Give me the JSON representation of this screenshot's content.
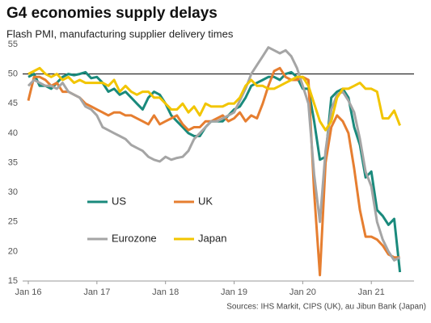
{
  "chart_data": {
    "type": "line",
    "title": "G4 economies supply delays",
    "subtitle": "Flash PMI, manufacturing supplier delivery times",
    "source": "Sources: IHS Markit, CIPS (UK), au Jibun Bank (Japan)",
    "categories": [
      "Jan 16",
      null,
      null,
      null,
      null,
      null,
      null,
      null,
      null,
      null,
      null,
      null,
      "Jan 17",
      null,
      null,
      null,
      null,
      null,
      null,
      null,
      null,
      null,
      null,
      null,
      "Jan 18",
      null,
      null,
      null,
      null,
      null,
      null,
      null,
      null,
      null,
      null,
      null,
      "Jan 19",
      null,
      null,
      null,
      null,
      null,
      null,
      null,
      null,
      null,
      null,
      null,
      "Jan 20",
      null,
      null,
      null,
      null,
      null,
      null,
      null,
      null,
      null,
      null,
      null,
      "Jan 21",
      null,
      null,
      null,
      null,
      null
    ],
    "ylim": [
      15,
      55
    ],
    "yticks": [
      15,
      20,
      25,
      30,
      35,
      40,
      45,
      50,
      55
    ],
    "hline": 50,
    "series": [
      {
        "name": "US",
        "color": "#1a8a7c",
        "values": [
          49.5,
          50,
          48,
          48,
          47.5,
          48.5,
          49.5,
          50,
          49.8,
          50,
          50.3,
          49.3,
          49.5,
          48.5,
          47,
          47.5,
          46.5,
          47,
          46,
          45,
          44,
          46,
          47,
          46.5,
          45,
          43,
          42,
          41,
          40,
          39.5,
          39.5,
          41,
          42,
          42,
          42,
          43,
          44,
          44.5,
          46,
          48,
          48.5,
          49,
          49.5,
          49.5,
          49,
          50,
          50.3,
          49.5,
          47.5,
          47.5,
          42,
          35.5,
          36,
          46,
          47,
          47.5,
          46,
          41,
          38,
          32.5,
          33.5,
          27,
          26,
          24.5,
          25.5,
          16.5
        ]
      },
      {
        "name": "UK",
        "color": "#e67e30",
        "values": [
          45.5,
          49.5,
          49.5,
          49,
          48,
          48.5,
          47,
          47,
          46.5,
          46,
          45,
          44.5,
          44,
          43.5,
          43,
          43.5,
          43.5,
          43,
          43,
          42.5,
          42,
          41.5,
          43,
          41.5,
          42,
          42.5,
          43,
          41.5,
          40.5,
          41,
          41,
          42,
          42,
          42.5,
          43,
          42,
          42.5,
          43.5,
          42,
          43,
          42.5,
          45,
          48,
          50.5,
          51,
          49.5,
          49,
          49,
          49.5,
          49,
          30,
          16,
          35,
          41,
          43,
          42,
          40,
          34,
          27,
          22.5,
          22.5,
          22,
          21,
          19.5,
          19,
          19
        ]
      },
      {
        "name": "Eurozone",
        "color": "#a5a5a5",
        "values": [
          48,
          49,
          48.5,
          48,
          48,
          47.5,
          48.5,
          47,
          46.5,
          46,
          44.5,
          44,
          43,
          41,
          40.5,
          40,
          39.5,
          39,
          38,
          37.5,
          37,
          36,
          35.5,
          35.2,
          36,
          35.5,
          35.8,
          36,
          37,
          39,
          40,
          41,
          42,
          42,
          42.5,
          43,
          43.5,
          45.5,
          47.5,
          50,
          51.5,
          53,
          54.5,
          54,
          53.5,
          54,
          53,
          51,
          48,
          45,
          33,
          25,
          37,
          44,
          46.5,
          47,
          45.5,
          43.5,
          39,
          33.5,
          31,
          25,
          22,
          20,
          18.5,
          19
        ]
      },
      {
        "name": "Japan",
        "color": "#f2c500",
        "values": [
          50,
          50.5,
          51,
          50,
          49.5,
          50,
          49,
          49.5,
          48.5,
          49,
          48.5,
          48.5,
          48.5,
          48.5,
          48,
          49,
          47,
          48,
          47,
          46.5,
          47,
          47,
          46,
          46,
          45,
          44,
          44,
          45,
          43.5,
          44.5,
          43,
          45,
          44.5,
          44.5,
          44.5,
          45,
          45,
          46,
          48,
          49,
          48,
          48,
          47.5,
          47.5,
          48,
          48.5,
          49,
          49.5,
          49.5,
          48,
          45,
          42,
          40.5,
          42,
          46,
          47.5,
          47.5,
          48,
          48.5,
          47.5,
          47.5,
          47,
          42.5,
          42.5,
          43.8,
          41.3
        ]
      }
    ]
  }
}
